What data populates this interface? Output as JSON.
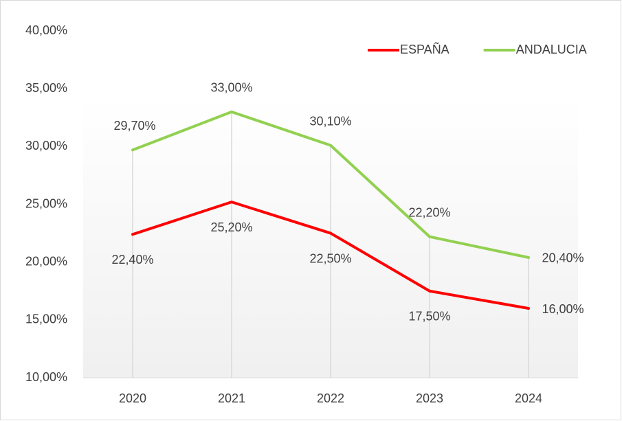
{
  "chart_data": {
    "type": "line",
    "categories": [
      "2020",
      "2021",
      "2022",
      "2023",
      "2024"
    ],
    "series": [
      {
        "name": "ESPAÑA",
        "color": "#ff0000",
        "values": [
          22.4,
          25.2,
          22.5,
          17.5,
          16.0
        ],
        "value_labels": [
          "22,40%",
          "25,20%",
          "22,50%",
          "17,50%",
          "16,00%"
        ]
      },
      {
        "name": "ANDALUCIA",
        "color": "#92d050",
        "values": [
          29.7,
          33.0,
          30.1,
          22.2,
          20.4
        ],
        "value_labels": [
          "29,70%",
          "33,00%",
          "30,10%",
          "22,20%",
          "20,40%"
        ]
      }
    ],
    "ylim": [
      10,
      40
    ],
    "yticks": [
      {
        "value": 10,
        "label": "10,00%"
      },
      {
        "value": 15,
        "label": "15,00%"
      },
      {
        "value": 20,
        "label": "20,00%"
      },
      {
        "value": 25,
        "label": "25,00%"
      },
      {
        "value": 30,
        "label": "30,00%"
      },
      {
        "value": 35,
        "label": "35,00%"
      },
      {
        "value": 40,
        "label": "40,00%"
      }
    ],
    "legend": "top-right"
  }
}
